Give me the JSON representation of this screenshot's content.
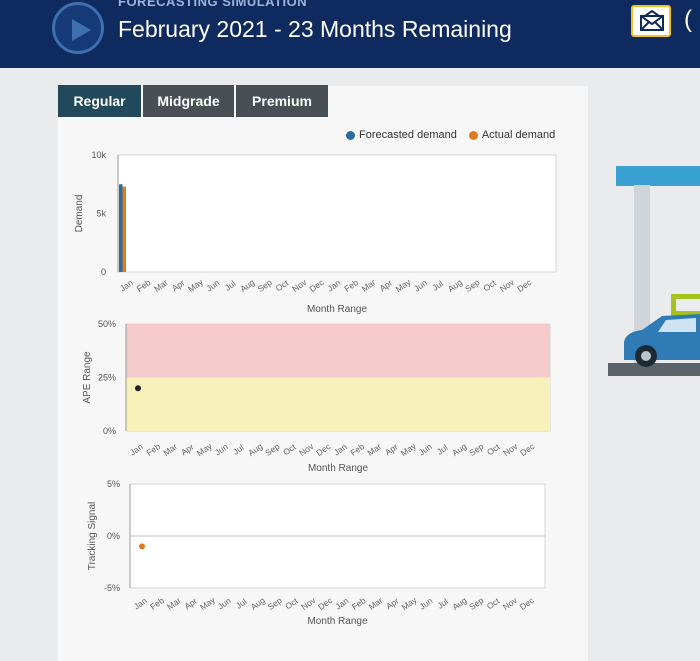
{
  "header": {
    "kicker": "FORECASTING SIMULATION",
    "title": "February 2021 - 23 Months Remaining"
  },
  "tabs": [
    {
      "label": "Regular",
      "active": true
    },
    {
      "label": "Midgrade",
      "active": false
    },
    {
      "label": "Premium",
      "active": false
    }
  ],
  "legend": [
    {
      "label": "Forecasted demand",
      "color": "#2b6c9e"
    },
    {
      "label": "Actual demand",
      "color": "#e07a1f"
    }
  ],
  "months": [
    "Jan",
    "Feb",
    "Mar",
    "Apr",
    "May",
    "Jun",
    "Jul",
    "Aug",
    "Sep",
    "Oct",
    "Nov",
    "Dec",
    "Jan",
    "Feb",
    "Mar",
    "Apr",
    "May",
    "Jun",
    "Jul",
    "Aug",
    "Sep",
    "Oct",
    "Nov",
    "Dec"
  ],
  "chart_data": [
    {
      "type": "bar",
      "ylabel": "Demand",
      "xlabel": "Month Range",
      "y_ticks": [
        "10k",
        "5k",
        "0"
      ],
      "ylim": [
        0,
        10000
      ],
      "series": [
        {
          "name": "Forecasted demand",
          "color": "#2b6c9e",
          "values": [
            7500
          ]
        },
        {
          "name": "Actual demand",
          "color": "#e07a1f",
          "values": [
            7300
          ]
        }
      ]
    },
    {
      "type": "scatter",
      "ylabel": "APE Range",
      "xlabel": "Month Range",
      "y_ticks": [
        "50%",
        "25%",
        "0%"
      ],
      "ylim": [
        0,
        50
      ],
      "bands": [
        {
          "from": 25,
          "to": 50,
          "color": "#f5caca"
        },
        {
          "from": 0,
          "to": 25,
          "color": "#f7f0b8"
        }
      ],
      "points": [
        {
          "month": "Jan",
          "value": 20,
          "color": "#222222"
        }
      ]
    },
    {
      "type": "scatter",
      "ylabel": "Tracking Signal",
      "xlabel": "Month Range",
      "y_ticks": [
        "5%",
        "0%",
        "-5%"
      ],
      "ylim": [
        -5,
        5
      ],
      "points": [
        {
          "month": "Jan",
          "value": -1,
          "color": "#e07a1f"
        }
      ]
    }
  ]
}
